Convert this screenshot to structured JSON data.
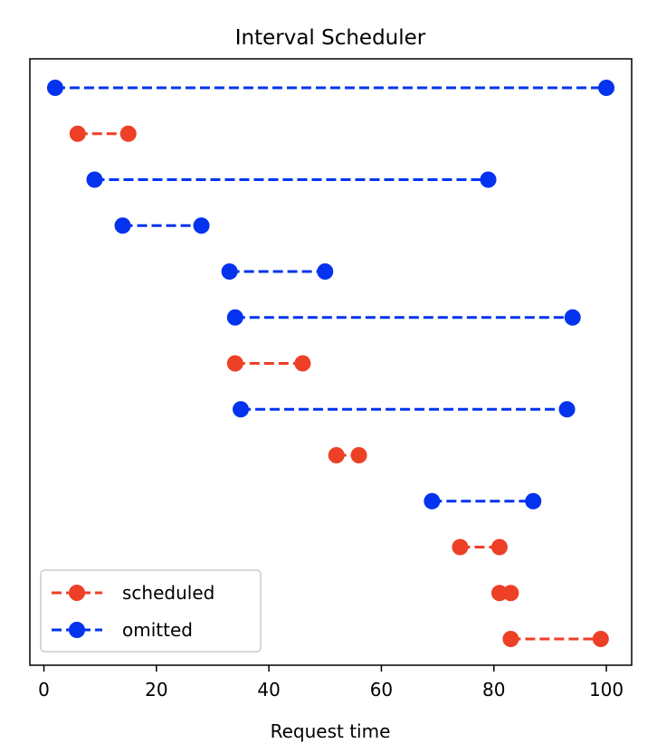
{
  "chart_data": {
    "type": "interval-dumbbell",
    "title": "Interval Scheduler",
    "xlabel": "Request time",
    "ylabel": "",
    "xlim": [
      -2.5,
      104.5
    ],
    "xticks": [
      0,
      20,
      40,
      60,
      80,
      100
    ],
    "xtick_labels": [
      "0",
      "20",
      "40",
      "60",
      "80",
      "100"
    ],
    "grid": false,
    "legend_position": "lower-left",
    "series": [
      {
        "name": "scheduled",
        "color": "#ee3f27",
        "line_style": "dashed",
        "marker": "circle"
      },
      {
        "name": "omitted",
        "color": "#0333ee",
        "line_style": "dashed",
        "marker": "circle"
      }
    ],
    "intervals": [
      {
        "start": 2,
        "end": 100,
        "status": "omitted"
      },
      {
        "start": 6,
        "end": 15,
        "status": "scheduled"
      },
      {
        "start": 9,
        "end": 79,
        "status": "omitted"
      },
      {
        "start": 14,
        "end": 28,
        "status": "omitted"
      },
      {
        "start": 33,
        "end": 50,
        "status": "omitted"
      },
      {
        "start": 34,
        "end": 94,
        "status": "omitted"
      },
      {
        "start": 34,
        "end": 46,
        "status": "scheduled"
      },
      {
        "start": 35,
        "end": 93,
        "status": "omitted"
      },
      {
        "start": 52,
        "end": 56,
        "status": "scheduled"
      },
      {
        "start": 69,
        "end": 87,
        "status": "omitted"
      },
      {
        "start": 74,
        "end": 81,
        "status": "scheduled"
      },
      {
        "start": 81,
        "end": 83,
        "status": "scheduled"
      },
      {
        "start": 83,
        "end": 99,
        "status": "scheduled"
      }
    ]
  }
}
